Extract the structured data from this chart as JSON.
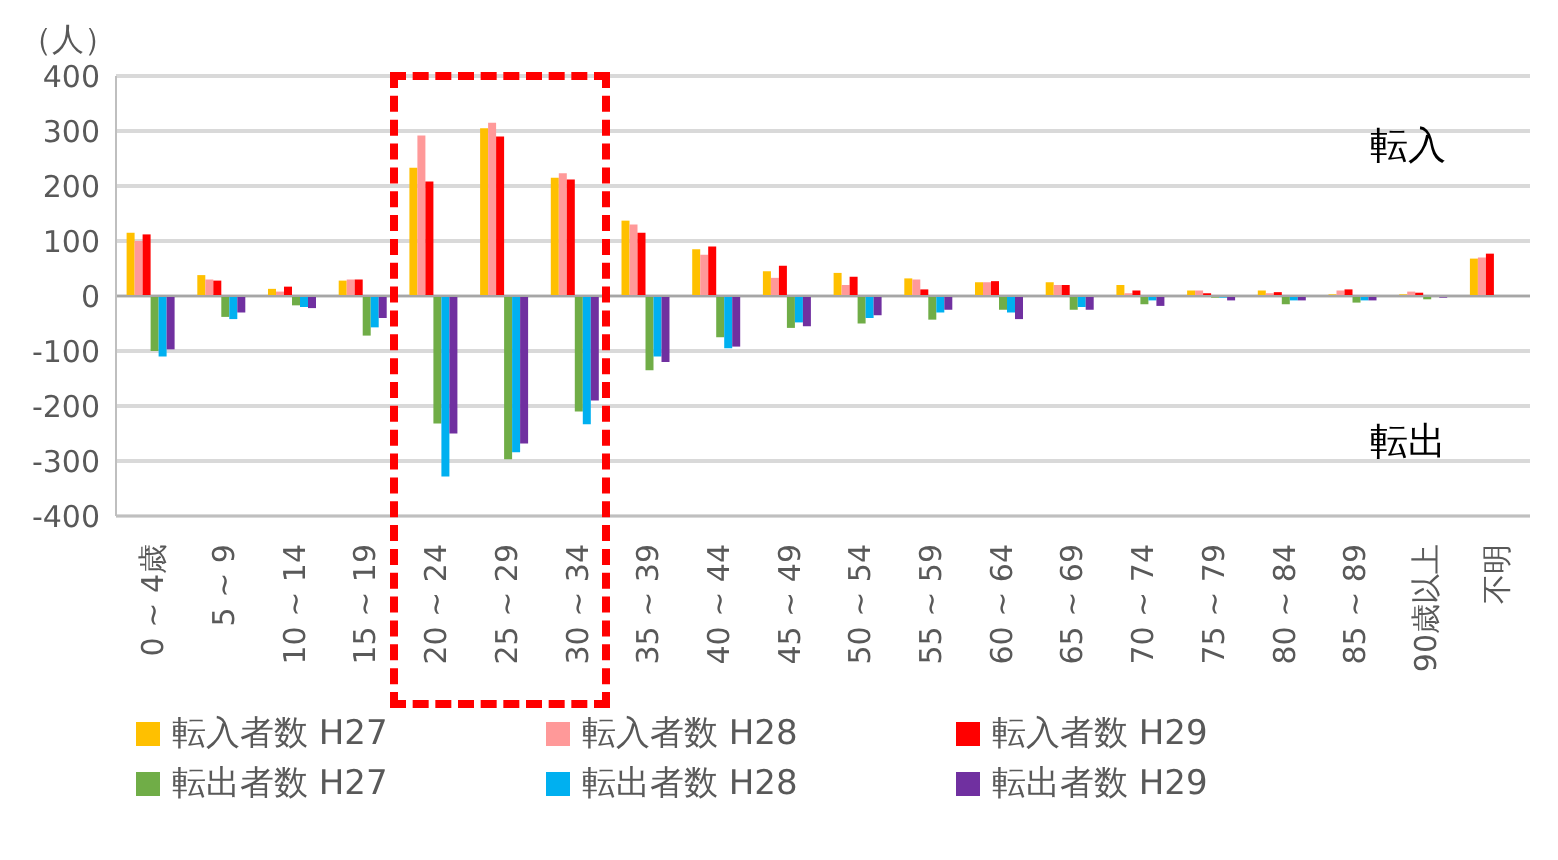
{
  "chart_data": {
    "type": "bar",
    "ylabel": "（人）",
    "categories": [
      "0 ~ 4歳",
      "5 ~ 9",
      "10 ~ 14",
      "15 ~ 19",
      "20 ~ 24",
      "25 ~ 29",
      "30 ~ 34",
      "35 ~ 39",
      "40 ~ 44",
      "45 ~ 49",
      "50 ~ 54",
      "55 ~ 59",
      "60 ~ 64",
      "65 ~ 69",
      "70 ~ 74",
      "75 ~ 79",
      "80 ~ 84",
      "85 ~ 89",
      "90歳以上",
      "不明"
    ],
    "series": [
      {
        "name": "転入者数 H27",
        "color": "#ffc000",
        "values": [
          115,
          38,
          13,
          28,
          233,
          305,
          215,
          137,
          85,
          45,
          42,
          32,
          25,
          25,
          20,
          10,
          10,
          3,
          3,
          68
        ]
      },
      {
        "name": "転入者数 H28",
        "color": "#ff9999",
        "values": [
          100,
          30,
          8,
          30,
          292,
          315,
          223,
          130,
          75,
          33,
          20,
          30,
          25,
          20,
          5,
          10,
          5,
          10,
          8,
          70
        ]
      },
      {
        "name": "転入者数 H29",
        "color": "#ff0000",
        "values": [
          112,
          28,
          17,
          30,
          208,
          290,
          212,
          115,
          90,
          55,
          35,
          12,
          27,
          20,
          10,
          5,
          7,
          12,
          6,
          77
        ]
      },
      {
        "name": "転出者数 H27",
        "color": "#70ad47",
        "values": [
          -100,
          -38,
          -17,
          -72,
          -232,
          -297,
          -210,
          -135,
          -75,
          -58,
          -50,
          -43,
          -25,
          -25,
          -15,
          -3,
          -15,
          -12,
          -6,
          null
        ]
      },
      {
        "name": "転出者数 H28",
        "color": "#00b0f0",
        "values": [
          -110,
          -42,
          -20,
          -57,
          -328,
          -284,
          -233,
          -110,
          -95,
          -48,
          -40,
          -30,
          -30,
          -20,
          -8,
          -3,
          -8,
          -8,
          null,
          null
        ]
      },
      {
        "name": "転出者数 H29",
        "color": "#7030a0",
        "values": [
          -97,
          -30,
          -22,
          -40,
          -250,
          -268,
          -190,
          -120,
          -92,
          -55,
          -35,
          -25,
          -42,
          -25,
          -18,
          -8,
          -8,
          -8,
          -3,
          null
        ]
      }
    ],
    "ylim": [
      -400,
      400
    ],
    "yticks": [
      -400,
      -300,
      -200,
      -100,
      0,
      100,
      200,
      300,
      400
    ],
    "grid": "y",
    "legend": "bottom",
    "annotations": [
      "転入",
      "転出"
    ]
  }
}
